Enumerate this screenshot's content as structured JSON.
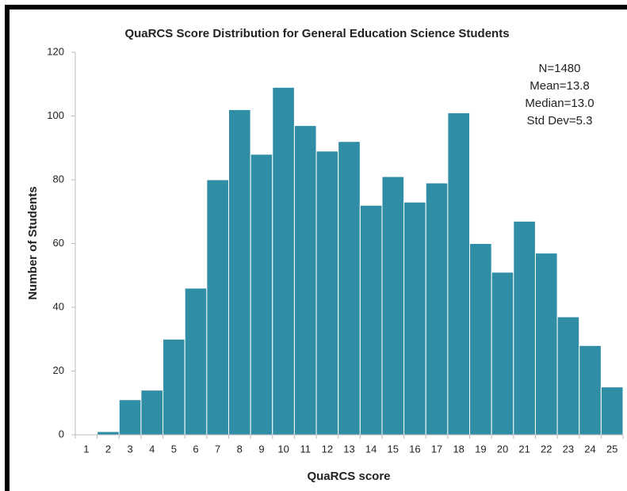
{
  "chart_data": {
    "type": "bar",
    "title": "QuaRCS Score Distribution for General Education Science Students",
    "x_label": "QuaRCS score",
    "y_label": "Number of Students",
    "annotations": [
      "N=1480",
      "Mean=13.8",
      "Median=13.0",
      "Std Dev=5.3"
    ],
    "categories": [
      1,
      2,
      3,
      4,
      5,
      6,
      7,
      8,
      9,
      10,
      11,
      12,
      13,
      14,
      15,
      16,
      17,
      18,
      19,
      20,
      21,
      22,
      23,
      24,
      25
    ],
    "values": [
      0,
      1,
      11,
      14,
      30,
      46,
      80,
      102,
      88,
      109,
      97,
      89,
      92,
      72,
      81,
      73,
      79,
      101,
      60,
      51,
      67,
      57,
      37,
      28,
      15
    ],
    "color": "#2f8ea5",
    "ylim": [
      0,
      120
    ],
    "yticks": [
      0,
      20,
      40,
      60,
      80,
      100,
      120
    ],
    "grid": false
  }
}
